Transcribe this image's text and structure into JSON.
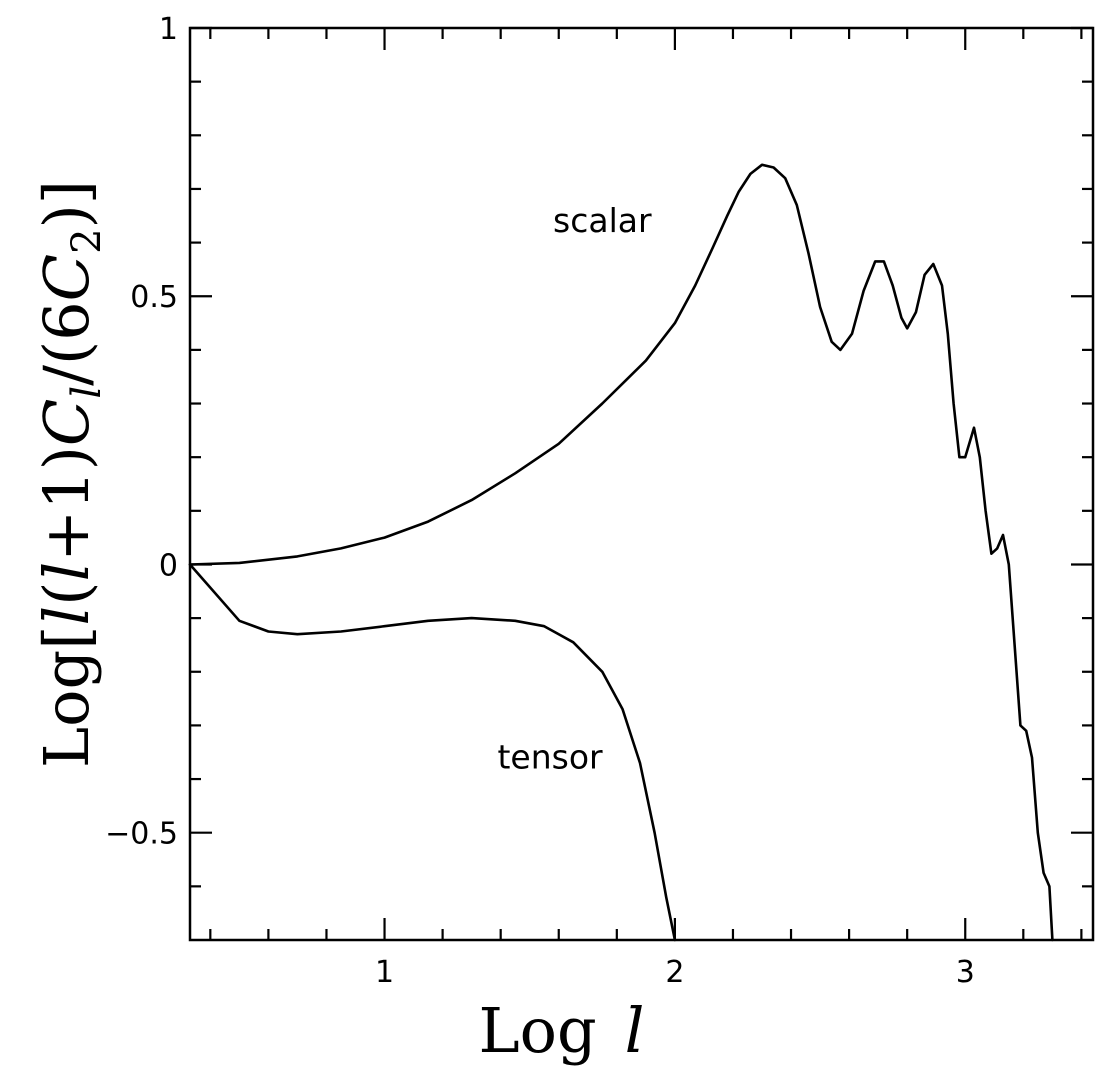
{
  "chart_data": {
    "type": "line",
    "title": "",
    "xlabel": {
      "prefix": "Log",
      "variable": "l"
    },
    "ylabel": {
      "prefix": "Log",
      "parts": [
        "[",
        "l",
        "(",
        "l",
        "+1)",
        "C",
        "l",
        "/(6",
        "C",
        "2",
        ")]"
      ]
    },
    "xlim": [
      0.33,
      3.44
    ],
    "ylim": [
      -0.7,
      1.0
    ],
    "x_ticks": [
      {
        "value": 1,
        "label": "1"
      },
      {
        "value": 2,
        "label": "2"
      },
      {
        "value": 3,
        "label": "3"
      }
    ],
    "y_ticks": [
      {
        "value": -0.5,
        "label": "−0.5"
      },
      {
        "value": 0,
        "label": "0"
      },
      {
        "value": 0.5,
        "label": "0.5"
      },
      {
        "value": 1,
        "label": "1"
      }
    ],
    "x_minor_step": 0.2,
    "y_minor_step": 0.1,
    "grid": false,
    "legend": "none",
    "annotations": [
      {
        "text": "scalar",
        "x": 1.75,
        "y": 0.62
      },
      {
        "text": "tensor",
        "x": 1.57,
        "y": -0.38
      }
    ],
    "series": [
      {
        "key": "scalar",
        "color": "#000000",
        "points": [
          [
            0.33,
            0.0
          ],
          [
            0.5,
            0.003
          ],
          [
            0.7,
            0.015
          ],
          [
            0.85,
            0.03
          ],
          [
            1.0,
            0.05
          ],
          [
            1.15,
            0.08
          ],
          [
            1.3,
            0.12
          ],
          [
            1.45,
            0.17
          ],
          [
            1.6,
            0.225
          ],
          [
            1.75,
            0.3
          ],
          [
            1.9,
            0.38
          ],
          [
            2.0,
            0.45
          ],
          [
            2.07,
            0.52
          ],
          [
            2.13,
            0.59
          ],
          [
            2.18,
            0.65
          ],
          [
            2.22,
            0.695
          ],
          [
            2.26,
            0.728
          ],
          [
            2.3,
            0.745
          ],
          [
            2.34,
            0.74
          ],
          [
            2.38,
            0.72
          ],
          [
            2.42,
            0.67
          ],
          [
            2.46,
            0.58
          ],
          [
            2.5,
            0.48
          ],
          [
            2.54,
            0.415
          ],
          [
            2.57,
            0.4
          ],
          [
            2.61,
            0.43
          ],
          [
            2.65,
            0.51
          ],
          [
            2.69,
            0.565
          ],
          [
            2.72,
            0.565
          ],
          [
            2.75,
            0.52
          ],
          [
            2.78,
            0.46
          ],
          [
            2.8,
            0.44
          ],
          [
            2.83,
            0.47
          ],
          [
            2.86,
            0.54
          ],
          [
            2.89,
            0.56
          ],
          [
            2.92,
            0.52
          ],
          [
            2.94,
            0.43
          ],
          [
            2.96,
            0.3
          ],
          [
            2.98,
            0.2
          ],
          [
            3.0,
            0.2
          ],
          [
            3.03,
            0.255
          ],
          [
            3.05,
            0.2
          ],
          [
            3.07,
            0.1
          ],
          [
            3.09,
            0.02
          ],
          [
            3.11,
            0.03
          ],
          [
            3.13,
            0.055
          ],
          [
            3.15,
            0.0
          ],
          [
            3.17,
            -0.15
          ],
          [
            3.19,
            -0.3
          ],
          [
            3.21,
            -0.31
          ],
          [
            3.23,
            -0.36
          ],
          [
            3.25,
            -0.5
          ],
          [
            3.27,
            -0.575
          ],
          [
            3.29,
            -0.6
          ],
          [
            3.3,
            -0.7
          ]
        ]
      },
      {
        "key": "tensor",
        "color": "#000000",
        "points": [
          [
            0.33,
            0.0
          ],
          [
            0.5,
            -0.105
          ],
          [
            0.6,
            -0.125
          ],
          [
            0.7,
            -0.13
          ],
          [
            0.85,
            -0.125
          ],
          [
            1.0,
            -0.115
          ],
          [
            1.15,
            -0.105
          ],
          [
            1.3,
            -0.1
          ],
          [
            1.45,
            -0.105
          ],
          [
            1.55,
            -0.115
          ],
          [
            1.65,
            -0.145
          ],
          [
            1.75,
            -0.2
          ],
          [
            1.82,
            -0.27
          ],
          [
            1.88,
            -0.37
          ],
          [
            1.93,
            -0.5
          ],
          [
            1.97,
            -0.62
          ],
          [
            2.0,
            -0.7
          ]
        ]
      }
    ]
  }
}
